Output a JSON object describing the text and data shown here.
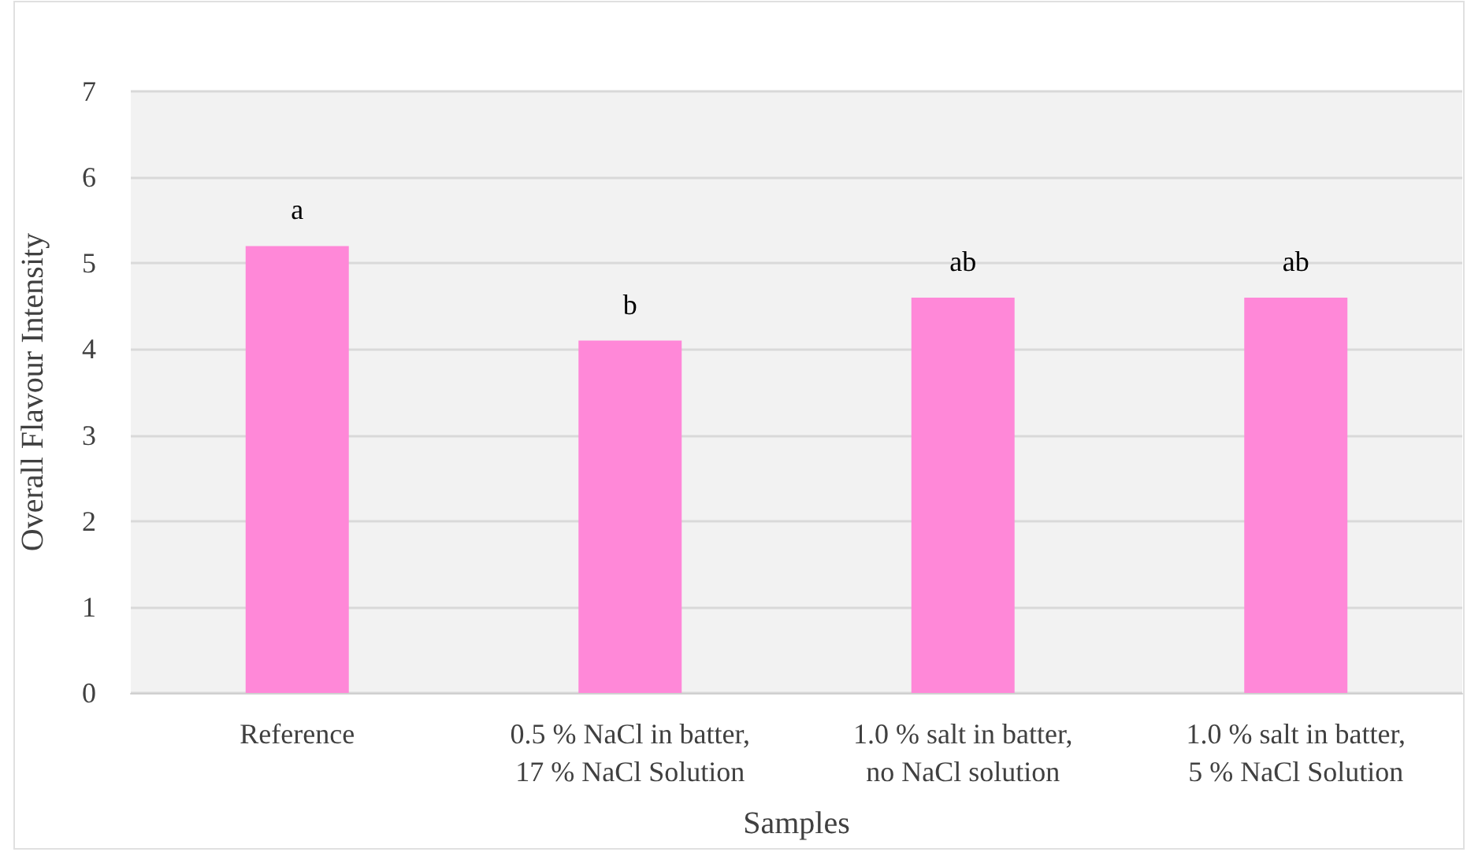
{
  "chart_data": {
    "type": "bar",
    "xlabel": "Samples",
    "ylabel": "Overall Flavour Intensity",
    "categories": [
      "Reference",
      "0.5 % NaCl in batter,\n17 % NaCl Solution",
      "1.0 % salt in batter,\nno NaCl solution",
      "1.0 % salt in batter,\n5 % NaCl Solution"
    ],
    "values": [
      5.2,
      4.1,
      4.6,
      4.6
    ],
    "color": "#ff88d8",
    "ylim": [
      0,
      7
    ],
    "yticks": [
      0,
      1,
      2,
      3,
      4,
      5,
      6,
      7
    ],
    "grid": "y",
    "annotations": [
      {
        "text": "a",
        "x": "Reference",
        "y": 5.2
      },
      {
        "text": "b",
        "x": "0.5 % NaCl in batter,\n17 % NaCl Solution",
        "y": 4.1
      },
      {
        "text": "ab",
        "x": "1.0 % salt in batter,\nno NaCl solution",
        "y": 4.6
      },
      {
        "text": "ab",
        "x": "1.0 % salt in batter,\n5 % NaCl Solution",
        "y": 4.6
      }
    ]
  }
}
